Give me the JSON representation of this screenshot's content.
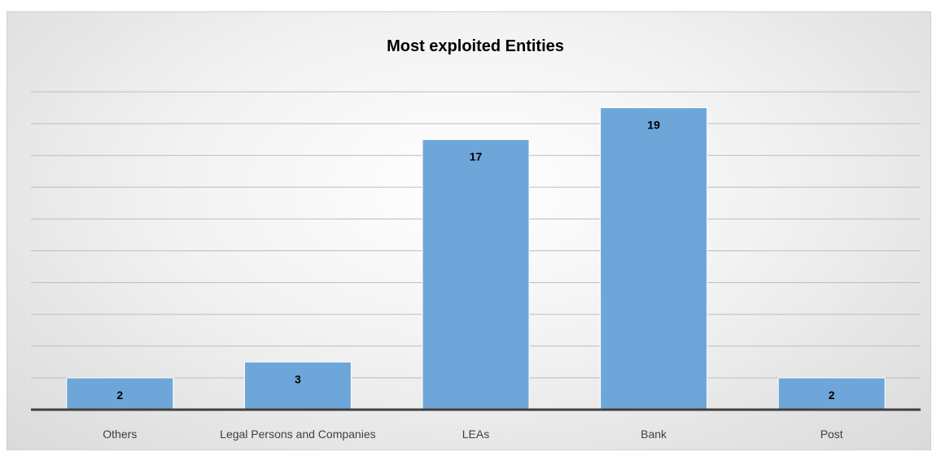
{
  "chart_data": {
    "type": "bar",
    "title": "Most exploited Entities",
    "categories": [
      "Others",
      "Legal Persons and Companies",
      "LEAs",
      "Bank",
      "Post"
    ],
    "values": [
      2,
      3,
      17,
      19,
      2
    ],
    "ylim": [
      0,
      20
    ],
    "grid": true,
    "legend": "none",
    "bar_color": "#6fa6d9",
    "bar_edge_color": "#ffffff"
  }
}
